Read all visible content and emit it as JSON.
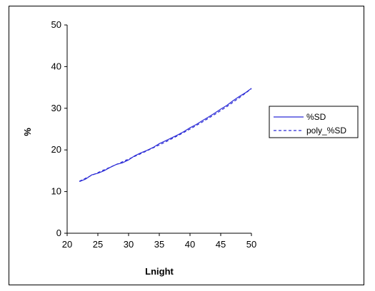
{
  "chart_data": {
    "type": "line",
    "title": "",
    "xlabel": "Lnight",
    "ylabel": "%",
    "xlim": [
      20,
      50
    ],
    "ylim": [
      0,
      50
    ],
    "x_ticks": [
      "20",
      "25",
      "30",
      "35",
      "40",
      "45",
      "50"
    ],
    "y_ticks": [
      "0",
      "10",
      "20",
      "30",
      "40",
      "50"
    ],
    "grid": false,
    "legend_position": "right",
    "series": [
      {
        "name": "%SD",
        "style": "solid",
        "color": "#2b2bd6",
        "x": [
          22,
          23,
          24,
          25,
          26,
          27,
          28,
          29,
          30,
          31,
          32,
          33,
          34,
          35,
          36,
          37,
          38,
          39,
          40,
          41,
          42,
          43,
          44,
          45,
          46,
          47,
          48,
          49,
          50
        ],
        "y": [
          12.4,
          13.0,
          14.0,
          14.4,
          15.0,
          15.8,
          16.5,
          16.9,
          17.6,
          18.6,
          19.3,
          19.9,
          20.6,
          21.5,
          22.2,
          22.9,
          23.6,
          24.4,
          25.3,
          26.1,
          27.0,
          27.9,
          28.8,
          29.8,
          30.7,
          31.8,
          32.8,
          33.7,
          34.8
        ]
      },
      {
        "name": "poly_%SD",
        "style": "dashed",
        "color": "#2b2bd6",
        "x": [
          22,
          24,
          26,
          28,
          30,
          32,
          34,
          36,
          38,
          40,
          42,
          44,
          46,
          48,
          50
        ],
        "y": [
          12.5,
          13.9,
          15.2,
          16.5,
          17.8,
          19.1,
          20.5,
          21.9,
          23.4,
          25.0,
          26.7,
          28.5,
          30.4,
          32.5,
          34.7
        ]
      }
    ]
  }
}
